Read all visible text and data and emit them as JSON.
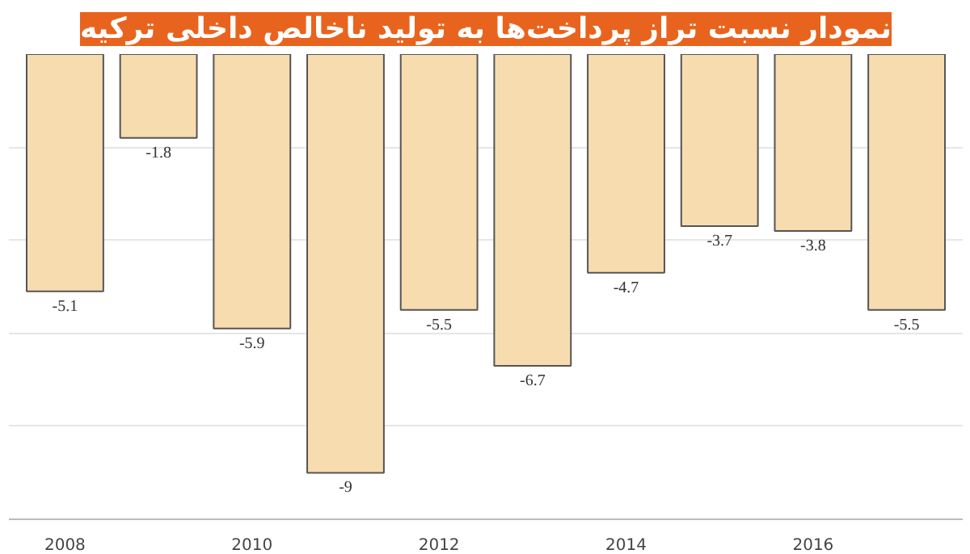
{
  "chart_data": {
    "type": "bar",
    "title": "نمودار نسبت تراز پرداخت‌ها به تولید ناخالص داخلی ترکیه",
    "categories": [
      "2008",
      null,
      "2010",
      null,
      "2012",
      null,
      "2014",
      null,
      "2016",
      null
    ],
    "values": [
      -5.1,
      -1.8,
      -5.9,
      -9,
      -5.5,
      -6.7,
      -4.7,
      -3.7,
      -3.8,
      -5.5
    ],
    "color": "#f7dcb0",
    "data_labels": true,
    "ylim": [
      -10,
      0
    ],
    "yticks": [
      {
        "value": -10,
        "label": null
      },
      {
        "value": -8,
        "label": null
      },
      {
        "value": -6,
        "label": null
      },
      {
        "value": -4,
        "label": null
      },
      {
        "value": -2,
        "label": null
      }
    ],
    "tick_labels": "x",
    "grid": "y"
  }
}
